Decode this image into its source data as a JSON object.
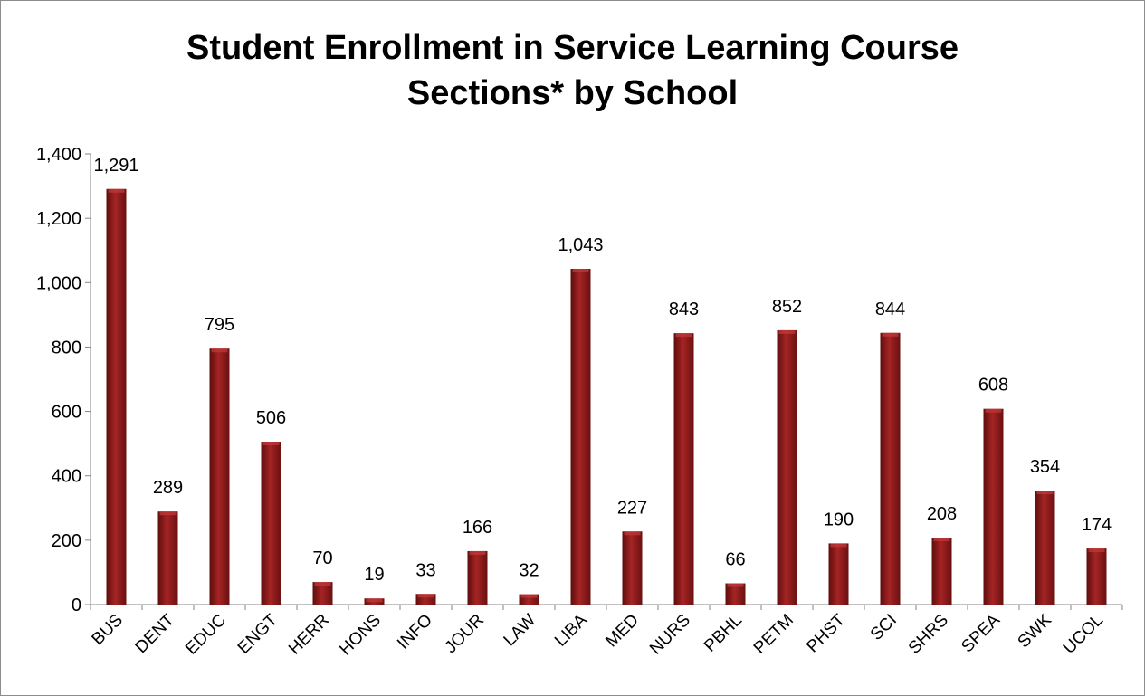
{
  "chart_data": {
    "type": "bar",
    "title_lines": [
      "Student Enrollment in Service Learning Course",
      "Sections* by School"
    ],
    "categories": [
      "BUS",
      "DENT",
      "EDUC",
      "ENGT",
      "HERR",
      "HONS",
      "INFO",
      "JOUR",
      "LAW",
      "LIBA",
      "MED",
      "NURS",
      "PBHL",
      "PETM",
      "PHST",
      "SCI",
      "SHRS",
      "SPEA",
      "SWK",
      "UCOL"
    ],
    "values": [
      1291,
      289,
      795,
      506,
      70,
      19,
      33,
      166,
      32,
      1043,
      227,
      843,
      66,
      852,
      190,
      844,
      208,
      608,
      354,
      174
    ],
    "data_labels": [
      "1,291",
      "289",
      "795",
      "506",
      "70",
      "19",
      "33",
      "166",
      "32",
      "1,043",
      "227",
      "843",
      "66",
      "852",
      "190",
      "844",
      "208",
      "608",
      "354",
      "174"
    ],
    "ylim": [
      0,
      1400
    ],
    "yticks": [
      0,
      200,
      400,
      600,
      800,
      1000,
      1200,
      1400
    ],
    "ytick_labels": [
      "0",
      "200",
      "400",
      "600",
      "800",
      "1,000",
      "1,200",
      "1,400"
    ],
    "xlabel": "",
    "ylabel": "",
    "grid": false,
    "legend": "none",
    "bar_color": "#8b1a1a"
  }
}
